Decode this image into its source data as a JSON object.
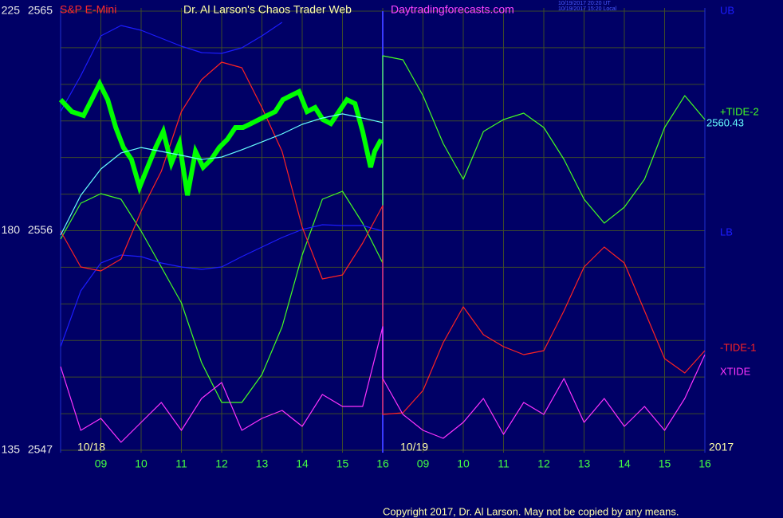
{
  "header": {
    "instrument": "S&P E-Mini",
    "site_title": "Dr. Al Larson's Chaos Trader Web",
    "url": "Daytradingforecasts.com",
    "time_ut": "10/19/2017 20:20 UT",
    "time_local": "10/19/2017 15:20 Local"
  },
  "footer": {
    "copyright": "Copyright 2017, Dr. Al Larson. May not be copied by any means."
  },
  "chart_data": {
    "type": "line",
    "x": [
      8,
      8.5,
      9,
      9.5,
      10,
      10.5,
      11,
      11.5,
      12,
      12.5,
      13,
      13.5,
      14,
      14.5,
      15,
      15.5,
      16,
      16,
      16.5,
      17,
      17.5,
      18,
      18.5,
      19,
      19.5,
      20,
      20.5,
      21,
      21.5,
      22,
      22.5,
      23,
      23.5,
      24
    ],
    "xlim": [
      8,
      24
    ],
    "xticks": [
      {
        "value": 9,
        "label": "09"
      },
      10,
      11,
      12,
      13,
      14,
      15,
      16,
      {
        "value": 17,
        "label": "09"
      },
      {
        "value": 18,
        "label": "10"
      },
      {
        "value": 19,
        "label": "11"
      },
      {
        "value": 20,
        "label": "12"
      },
      {
        "value": 21,
        "label": "13"
      },
      {
        "value": 22,
        "label": "14"
      },
      {
        "value": 23,
        "label": "15"
      },
      {
        "value": 24,
        "label": "16"
      }
    ],
    "day_labels": [
      "10/18",
      "10/19"
    ],
    "year": "2017",
    "ylim": [
      135,
      225
    ],
    "yticks": [
      135,
      180,
      225
    ],
    "y2lim": [
      2547,
      2565
    ],
    "y2ticks": [
      2547,
      2556,
      2565
    ],
    "ygrid": [
      142.5,
      150,
      157.5,
      165,
      172.5,
      187.5,
      195,
      202.5,
      210,
      217.5
    ],
    "grid": true,
    "series": [
      {
        "name": "UB",
        "color": "#1c1cff",
        "values": [
          204.42,
          211.77,
          219.94,
          222.06,
          221.08,
          219.45,
          217.81,
          216.51,
          216.34,
          217.49,
          219.94,
          222.71,
          null,
          null,
          null,
          null,
          null,
          null,
          null,
          null,
          null,
          null,
          null,
          null,
          null,
          null,
          null,
          null,
          null,
          null,
          null,
          null,
          null,
          null
        ]
      },
      {
        "name": "+TIDE-2",
        "color": "#44ff22",
        "values": [
          178.29,
          185.64,
          187.6,
          186.45,
          179.92,
          172.57,
          165.22,
          152.97,
          144.8,
          144.8,
          150.52,
          160.32,
          175.02,
          186.45,
          188.09,
          181.55,
          173.39,
          215.85,
          215.04,
          207.69,
          197.89,
          190.53,
          200.34,
          202.79,
          204.09,
          201.15,
          194.62,
          186.45,
          181.55,
          184.82,
          190.53,
          201.15,
          207.69,
          202.79
        ]
      },
      {
        "name": "LB",
        "color": "#1c1cff",
        "values": [
          156.23,
          167.67,
          173.39,
          175.02,
          174.69,
          173.39,
          172.57,
          172.08,
          172.57,
          174.69,
          176.65,
          178.61,
          180.25,
          181.22,
          181.06,
          181.06,
          179.92,
          null,
          null,
          null,
          null,
          null,
          null,
          null,
          null,
          null,
          null,
          null,
          null,
          null,
          null,
          null,
          null,
          null
        ]
      },
      {
        "name": "-TIDE-1",
        "color": "#ff2222",
        "values": [
          179.92,
          172.57,
          171.75,
          174.2,
          184.0,
          192.17,
          204.42,
          210.95,
          214.55,
          213.4,
          205.24,
          196.25,
          180.73,
          170.12,
          170.93,
          177.47,
          185.15,
          142.35,
          142.68,
          147.25,
          157.05,
          164.4,
          158.68,
          156.23,
          154.6,
          155.42,
          163.58,
          172.57,
          176.65,
          173.38,
          163.58,
          153.78,
          150.84,
          155.42
        ]
      },
      {
        "name": "XTIDE",
        "color": "#ff33ff",
        "values": [
          152.15,
          139.08,
          141.53,
          136.63,
          140.72,
          144.8,
          139.08,
          145.62,
          148.88,
          139.08,
          141.53,
          143.17,
          139.9,
          146.43,
          143.98,
          143.98,
          160.32,
          149.7,
          142.35,
          139.08,
          137.45,
          140.72,
          145.62,
          138.27,
          144.8,
          142.35,
          149.7,
          140.72,
          145.62,
          139.9,
          143.98,
          139.08,
          145.62,
          154.6
        ]
      },
      {
        "color": "#00ff00",
        "axis": "y2",
        "x": [
          8,
          8.28,
          8.57,
          8.77,
          8.97,
          9.17,
          9.37,
          9.56,
          9.76,
          9.96,
          10.16,
          10.36,
          10.55,
          10.75,
          10.95,
          11.15,
          11.35,
          11.54,
          11.74,
          11.94,
          12.14,
          12.34,
          12.53,
          12.73,
          12.93,
          13.13,
          13.33,
          13.52,
          13.72,
          13.92,
          14.12,
          14.32,
          14.51,
          14.71,
          14.91,
          15.11,
          15.31,
          15.5,
          15.7,
          15.8,
          15.96
        ],
        "values": [
          2561.37,
          2560.88,
          2560.72,
          2561.37,
          2562.03,
          2561.37,
          2560.23,
          2559.41,
          2558.92,
          2557.78,
          2558.6,
          2559.41,
          2560.07,
          2558.76,
          2559.58,
          2557.45,
          2559.25,
          2558.6,
          2558.92,
          2559.41,
          2559.74,
          2560.23,
          2560.23,
          2560.39,
          2560.56,
          2560.72,
          2560.88,
          2561.37,
          2561.54,
          2561.7,
          2560.88,
          2561.05,
          2560.56,
          2560.39,
          2560.88,
          2561.37,
          2561.21,
          2560.07,
          2558.6,
          2559.25,
          2559.74
        ]
      },
      {
        "color": "#66ffff",
        "axis": "y2",
        "values": [
          2555.82,
          2557.45,
          2558.53,
          2559.19,
          2559.41,
          2559.25,
          2559.09,
          2558.92,
          2559.02,
          2559.32,
          2559.64,
          2559.97,
          2560.36,
          2560.62,
          2560.79,
          2560.62,
          2560.43,
          null,
          null,
          null,
          null,
          null,
          null,
          null,
          null,
          null,
          null,
          null,
          null,
          null,
          null,
          null,
          null,
          null
        ]
      }
    ]
  }
}
